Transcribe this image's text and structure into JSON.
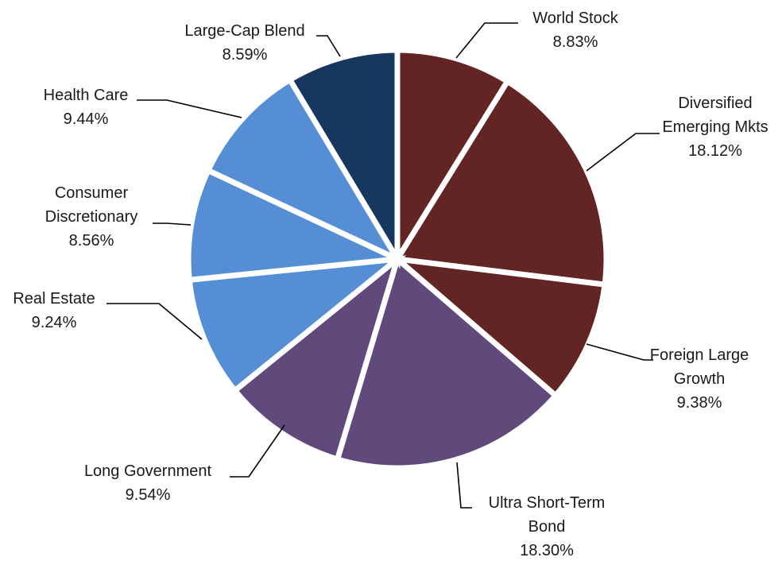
{
  "chart_data": {
    "type": "pie",
    "title": "",
    "start_angle_deg": 0,
    "direction": "clockwise",
    "slices": [
      {
        "label": [
          "World Stock"
        ],
        "value_text": "8.83%",
        "value": 8.83,
        "color": "#632523"
      },
      {
        "label": [
          "Diversified",
          "Emerging Mkts"
        ],
        "value_text": "18.12%",
        "value": 18.12,
        "color": "#632523"
      },
      {
        "label": [
          "Foreign Large",
          "Growth"
        ],
        "value_text": "9.38%",
        "value": 9.38,
        "color": "#632523"
      },
      {
        "label": [
          "Ultra Short-Term",
          "Bond"
        ],
        "value_text": "18.30%",
        "value": 18.3,
        "color": "#604A7B"
      },
      {
        "label": [
          "Long Government"
        ],
        "value_text": "9.54%",
        "value": 9.54,
        "color": "#604A7B"
      },
      {
        "label": [
          "Real Estate"
        ],
        "value_text": "9.24%",
        "value": 9.24,
        "color": "#558ED5"
      },
      {
        "label": [
          "Consumer",
          "Discretionary"
        ],
        "value_text": "8.56%",
        "value": 8.56,
        "color": "#558ED5"
      },
      {
        "label": [
          "Health Care"
        ],
        "value_text": "9.44%",
        "value": 9.44,
        "color": "#558ED5"
      },
      {
        "label": [
          "Large-Cap Blend"
        ],
        "value_text": "8.59%",
        "value": 8.59,
        "color": "#17375E"
      }
    ]
  }
}
